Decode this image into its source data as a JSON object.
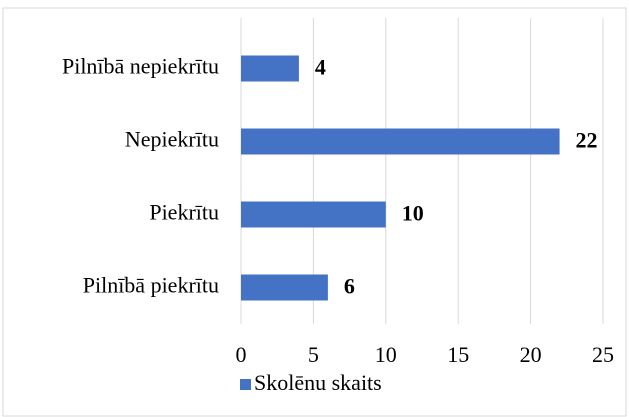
{
  "chart_data": {
    "type": "bar",
    "orientation": "horizontal",
    "categories": [
      "Pilnībā nepiekrītu",
      "Nepiekrītu",
      "Piekrītu",
      "Pilnībā piekrītu"
    ],
    "series": [
      {
        "name": "Skolēnu skaits",
        "color": "#4472c4",
        "values": [
          4,
          22,
          10,
          6
        ]
      }
    ],
    "xlim": [
      0,
      25
    ],
    "xticks": [
      0,
      5,
      10,
      15,
      20,
      25
    ],
    "grid": true,
    "legend": "bottom"
  }
}
